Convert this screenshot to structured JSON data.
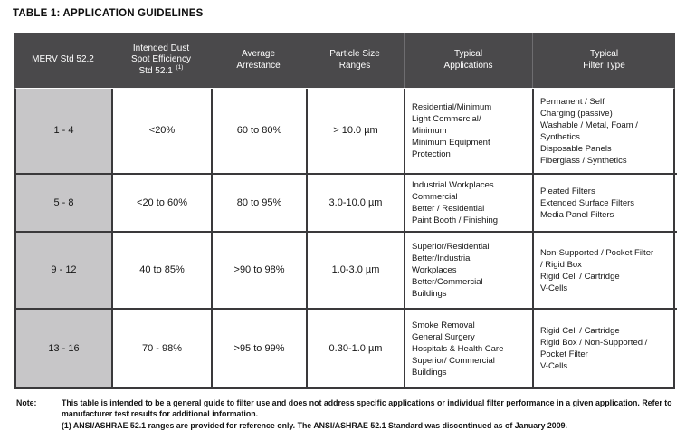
{
  "title": "TABLE 1: APPLICATION GUIDELINES",
  "colors": {
    "header_bg": "#4a494b",
    "merv_column_bg": "#c7c6c8",
    "grid_border": "#3a393b"
  },
  "table": {
    "headers": [
      {
        "lines": [
          "MERV Std 52.2"
        ]
      },
      {
        "lines": [
          "Intended Dust",
          "Spot Efficiency"
        ],
        "last_line": "Std 52.1",
        "superscript": "(1)"
      },
      {
        "lines": [
          "Average",
          "Arrestance"
        ]
      },
      {
        "lines": [
          "Particle Size",
          "Ranges"
        ]
      },
      {
        "lines": [
          "Typical",
          "Applications"
        ]
      },
      {
        "lines": [
          "Typical",
          "Filter Type"
        ]
      }
    ],
    "rows": [
      {
        "cells": [
          {
            "lines": [
              "1 - 4"
            ]
          },
          {
            "lines": [
              "<20%"
            ]
          },
          {
            "lines": [
              "60 to 80%"
            ]
          },
          {
            "lines": [
              "> 10.0 µm"
            ]
          },
          {
            "lines": [
              "Residential/Minimum",
              "Light Commercial/",
              "Minimum",
              "Minimum Equipment",
              "Protection"
            ]
          },
          {
            "lines": [
              "Permanent / Self",
              "Charging (passive)",
              "Washable / Metal, Foam /",
              "Synthetics",
              "Disposable Panels",
              "Fiberglass / Synthetics"
            ]
          }
        ]
      },
      {
        "cells": [
          {
            "lines": [
              "5 - 8"
            ]
          },
          {
            "lines": [
              "<20 to 60%"
            ]
          },
          {
            "lines": [
              "80 to 95%"
            ]
          },
          {
            "lines": [
              "3.0-10.0 µm"
            ]
          },
          {
            "lines": [
              "Industrial Workplaces",
              "Commercial",
              "Better / Residential",
              "Paint Booth / Finishing"
            ]
          },
          {
            "lines": [
              "Pleated Filters",
              "Extended Surface Filters",
              "Media Panel Filters"
            ]
          }
        ]
      },
      {
        "cells": [
          {
            "lines": [
              "9 - 12"
            ]
          },
          {
            "lines": [
              "40 to 85%"
            ]
          },
          {
            "lines": [
              ">90 to 98%"
            ]
          },
          {
            "lines": [
              "1.0-3.0 µm"
            ]
          },
          {
            "lines": [
              "Superior/Residential",
              "Better/Industrial",
              "Workplaces",
              "Better/Commercial",
              "Buildings"
            ]
          },
          {
            "lines": [
              "Non-Supported / Pocket Filter",
              "/ Rigid Box",
              "Rigid Cell / Cartridge",
              "V-Cells"
            ]
          }
        ]
      },
      {
        "cells": [
          {
            "lines": [
              "13 - 16"
            ]
          },
          {
            "lines": [
              "70 - 98%"
            ]
          },
          {
            "lines": [
              ">95 to 99%"
            ]
          },
          {
            "lines": [
              "0.30-1.0 µm"
            ]
          },
          {
            "lines": [
              "Smoke Removal",
              "General Surgery",
              "Hospitals & Health Care",
              "Superior/ Commercial",
              "Buildings"
            ]
          },
          {
            "lines": [
              "Rigid Cell / Cartridge",
              "Rigid Box / Non-Supported /",
              "Pocket Filter",
              "V-Cells"
            ]
          }
        ]
      }
    ]
  },
  "note": {
    "label": "Note:",
    "paragraphs": [
      "This table is intended to be a general guide to filter use and does not address specific applications or individual filter performance in a given application.  Refer to manufacturer test results for additional information.",
      "(1) ANSI/ASHRAE 52.1 ranges are provided for reference only. The ANSI/ASHRAE 52.1 Standard was discontinued as of January 2009."
    ]
  }
}
